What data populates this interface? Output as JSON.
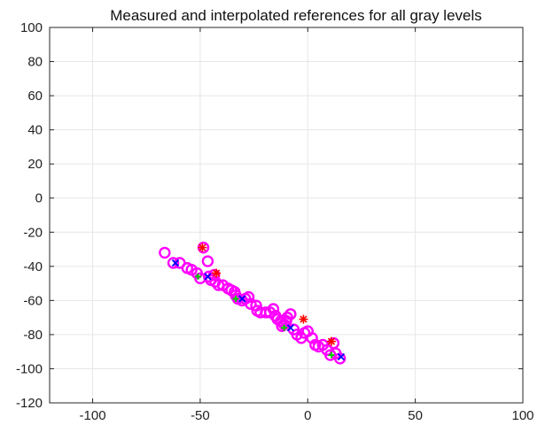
{
  "chart_data": {
    "type": "scatter",
    "title": "Measured and interpolated references for all gray levels",
    "xlabel": "",
    "ylabel": "",
    "xlim": [
      -120,
      100
    ],
    "ylim": [
      -120,
      100
    ],
    "xticks": [
      -100,
      -50,
      0,
      50,
      100
    ],
    "yticks": [
      100,
      80,
      60,
      40,
      20,
      0,
      -20,
      -40,
      -60,
      -80,
      -100,
      -120
    ],
    "grid": true,
    "colors": {
      "interpolated": "#ff00ff",
      "measured_star": "#ff0000",
      "measured_x": "#0000ff",
      "measured_plus": "#00cc00",
      "grid": "#e6e6e6",
      "axes": "#000000"
    },
    "series": [
      {
        "marker": "circle",
        "color": "#ff00ff",
        "points": [
          [
            -66.5,
            -32
          ],
          [
            -62.5,
            -38
          ],
          [
            -59.5,
            -38
          ],
          [
            -56,
            -41
          ],
          [
            -54,
            -42
          ],
          [
            -51.5,
            -44
          ],
          [
            -50,
            -47
          ],
          [
            -48.5,
            -29
          ],
          [
            -46.5,
            -37
          ],
          [
            -46,
            -46
          ],
          [
            -45,
            -48
          ],
          [
            -43.5,
            -45
          ],
          [
            -43,
            -49
          ],
          [
            -41.5,
            -51
          ],
          [
            -39.5,
            -51
          ],
          [
            -37,
            -53
          ],
          [
            -35.5,
            -54
          ],
          [
            -34,
            -55
          ],
          [
            -33.5,
            -57
          ],
          [
            -32.5,
            -59
          ],
          [
            -30.5,
            -60
          ],
          [
            -29,
            -59
          ],
          [
            -27.5,
            -58
          ],
          [
            -26.5,
            -62
          ],
          [
            -24,
            -63
          ],
          [
            -23.5,
            -66
          ],
          [
            -22,
            -67
          ],
          [
            -19.5,
            -67
          ],
          [
            -17.5,
            -67
          ],
          [
            -16,
            -65
          ],
          [
            -15,
            -69
          ],
          [
            -14,
            -71
          ],
          [
            -12.5,
            -72
          ],
          [
            -12,
            -75
          ],
          [
            -11,
            -74
          ],
          [
            -10,
            -72
          ],
          [
            -9.5,
            -70
          ],
          [
            -8,
            -68
          ],
          [
            -6.5,
            -77
          ],
          [
            -5,
            -80
          ],
          [
            -3,
            -82
          ],
          [
            -1.5,
            -79
          ],
          [
            0,
            -78
          ],
          [
            2,
            -82
          ],
          [
            3.5,
            -86
          ],
          [
            5,
            -87
          ],
          [
            7,
            -86
          ],
          [
            9,
            -89
          ],
          [
            10.5,
            -92
          ],
          [
            12,
            -85
          ],
          [
            13,
            -91
          ],
          [
            15,
            -94
          ]
        ]
      },
      {
        "marker": "star",
        "color": "#ff0000",
        "points": [
          [
            -49,
            -29
          ],
          [
            -42.5,
            -44
          ],
          [
            -2,
            -71
          ],
          [
            11,
            -84
          ]
        ]
      },
      {
        "marker": "x",
        "color": "#0000ff",
        "points": [
          [
            -61.5,
            -38
          ],
          [
            -46.5,
            -46
          ],
          [
            -30.5,
            -59
          ],
          [
            -8,
            -76
          ],
          [
            15.5,
            -93
          ]
        ]
      },
      {
        "marker": "plus",
        "color": "#00cc00",
        "points": [
          [
            -51,
            -46
          ],
          [
            -33.5,
            -59
          ],
          [
            -11,
            -76
          ],
          [
            11,
            -92
          ]
        ]
      }
    ]
  }
}
